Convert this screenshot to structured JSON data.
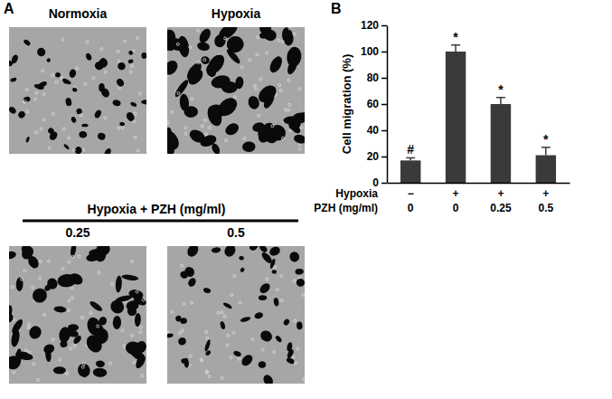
{
  "chart_data": {
    "type": "bar",
    "panel_letter": "B",
    "y_label": "Cell migration (%)",
    "categories": [
      null,
      null,
      null,
      null
    ],
    "values": [
      17,
      100,
      60,
      21
    ],
    "errors": [
      2,
      5,
      5,
      6
    ],
    "significance": [
      "#",
      "*",
      "*",
      "*"
    ],
    "x_table_rows": [
      {
        "label": "Hypoxia",
        "values": [
          "−",
          "+",
          "+",
          "+"
        ]
      },
      {
        "label": "PZH (mg/ml)",
        "values": [
          "0",
          "0",
          "0.25",
          "0.5"
        ]
      }
    ],
    "color": "#3a3a3a",
    "ylim": [
      0,
      120
    ],
    "yticks": [
      0,
      20,
      40,
      60,
      80,
      100,
      120
    ],
    "grid": false,
    "tick_labels": "y"
  },
  "panel_a": {
    "letter": "A",
    "images": [
      {
        "label": "Normoxia"
      },
      {
        "label": "Hypoxia"
      },
      {
        "label": "0.25"
      },
      {
        "label": "0.5"
      }
    ],
    "group_label": "Hypoxia + PZH (mg/ml)"
  }
}
